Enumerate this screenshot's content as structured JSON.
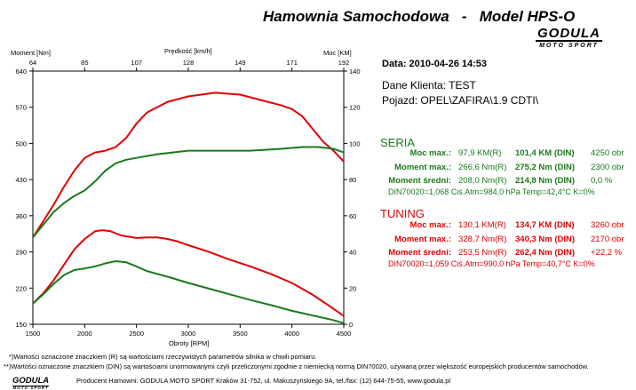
{
  "header": {
    "title": "Hamownia Samochodowa   -   Model HPS-O",
    "logo_main": "GODULA",
    "logo_sub": "MOTO SPORT"
  },
  "info": {
    "date": "Data: 2010-04-26  14:53",
    "klient": "Dane Klienta: TEST",
    "pojazd": "Pojazd: OPEL\\ZAFIRA\\1.9 CDTI\\"
  },
  "seria": {
    "title": "SERIA",
    "rows": [
      {
        "label": "Moc max.:",
        "r": "97,9 KM(R)",
        "din": "101,4 KM (DIN)",
        "extra": "4250 obr"
      },
      {
        "label": "Moment max.:",
        "r": "266,6 Nm(R)",
        "din": "275,2 Nm (DIN)",
        "extra": "2300 obr"
      },
      {
        "label": "Moment średni:",
        "r": "208,0 Nm(R)",
        "din": "214,8 Nm (DIN)",
        "extra": "0,0 %"
      }
    ],
    "din_line": "DIN70020=1,068   Ciś.Atm=984,0 hPa    Temp=42,4°C   K=0%"
  },
  "tuning": {
    "title": "TUNING",
    "rows": [
      {
        "label": "Moc max.:",
        "r": "130,1 KM(R)",
        "din": "134,7 KM (DIN)",
        "extra": "3260 obr"
      },
      {
        "label": "Moment max.:",
        "r": "328,7 Nm(R)",
        "din": "340,3 Nm (DIN)",
        "extra": "2170 obr"
      },
      {
        "label": "Moment średni:",
        "r": "253,5 Nm(R)",
        "din": "262,4 Nm (DIN)",
        "extra": "+22,2 %"
      }
    ],
    "din_line": "DIN70020=1,059   Ciś.Atm=990,0 hPa    Temp=40,7°C   K=0%"
  },
  "footer": {
    "note1": "*)Wartości oznaczone znaczkiem (R) są wartościami rzeczywistych parametrów silnika w chwili pomiaru.",
    "note2": "**)Wartości oznaczone znaczkiem (DIN) są wartościami unormowanymi czyli przeliczonymi zgodnie z niemiecką normą DIN70020, używaną przez większość europejskich producentów samochodów.",
    "producer": "Producent Hamowni: GODULA MOTO SPORT Kraków 31-752, ul. Makuszyńskiego 9A, tel./fax: (12) 644-75-55, www.godula.pl",
    "logo_main": "GODULA",
    "logo_sub": "MOTO SPORT"
  },
  "colors": {
    "seria": "#1a7a1a",
    "tuning": "#e00000"
  },
  "chart_data": {
    "type": "line",
    "xlabel": "Obroty [RPM]",
    "xlim": [
      1500,
      4500
    ],
    "x_ticks": [
      1500,
      2000,
      2500,
      3000,
      3500,
      4000,
      4500
    ],
    "left_axis_label": "Moment [Nm]",
    "left_ylim": [
      150,
      640
    ],
    "left_ticks": [
      640,
      570,
      500,
      430,
      360,
      290,
      220,
      150
    ],
    "right_axis_label": "Moc [KM]",
    "right_ylim": [
      0,
      140
    ],
    "right_ticks": [
      140,
      120,
      100,
      80,
      60,
      40,
      20,
      0
    ],
    "top_axis_label": "Prędkość [km/h]",
    "top_ticks": [
      "64",
      "85",
      "107",
      "128",
      "149",
      "171",
      "192"
    ],
    "grid": false,
    "series": [
      {
        "axis": "left",
        "color": "#e00000",
        "x": [
          1500,
          1600,
          1700,
          1800,
          1900,
          2000,
          2100,
          2170,
          2250,
          2350,
          2500,
          2600,
          2700,
          2800,
          2900,
          3000,
          3200,
          3400,
          3600,
          3800,
          4000,
          4200,
          4350,
          4500
        ],
        "values": [
          190,
          210,
          235,
          265,
          295,
          315,
          330,
          332,
          330,
          322,
          317,
          318,
          318,
          315,
          310,
          303,
          290,
          275,
          262,
          247,
          230,
          207,
          187,
          166
        ]
      },
      {
        "axis": "left",
        "color": "#1a7a1a",
        "x": [
          1500,
          1600,
          1700,
          1800,
          1900,
          2000,
          2100,
          2200,
          2300,
          2400,
          2500,
          2600,
          2800,
          3000,
          3200,
          3400,
          3600,
          3800,
          4000,
          4200,
          4400,
          4500
        ],
        "values": [
          190,
          208,
          228,
          245,
          255,
          258,
          262,
          268,
          272,
          270,
          262,
          253,
          242,
          230,
          219,
          208,
          197,
          187,
          176,
          167,
          158,
          152
        ]
      },
      {
        "axis": "right",
        "color": "#e00000",
        "x": [
          1500,
          1600,
          1700,
          1800,
          1900,
          2000,
          2100,
          2200,
          2300,
          2400,
          2500,
          2600,
          2800,
          3000,
          3260,
          3500,
          3700,
          3900,
          4000,
          4100,
          4200,
          4300,
          4400,
          4500
        ],
        "values": [
          48,
          57,
          66,
          76,
          85,
          92,
          95,
          96,
          98,
          103,
          111,
          117,
          123,
          126,
          128,
          127,
          124,
          121,
          119,
          115,
          108,
          101,
          96,
          90
        ]
      },
      {
        "axis": "right",
        "color": "#1a7a1a",
        "x": [
          1500,
          1600,
          1700,
          1800,
          1900,
          2000,
          2100,
          2200,
          2300,
          2400,
          2500,
          2700,
          3000,
          3300,
          3600,
          3900,
          4100,
          4250,
          4400,
          4500
        ],
        "values": [
          48,
          55,
          62,
          67,
          71,
          74,
          79,
          85,
          89,
          91,
          92,
          94,
          96,
          96,
          96,
          97,
          98,
          98,
          97,
          95
        ]
      }
    ]
  }
}
